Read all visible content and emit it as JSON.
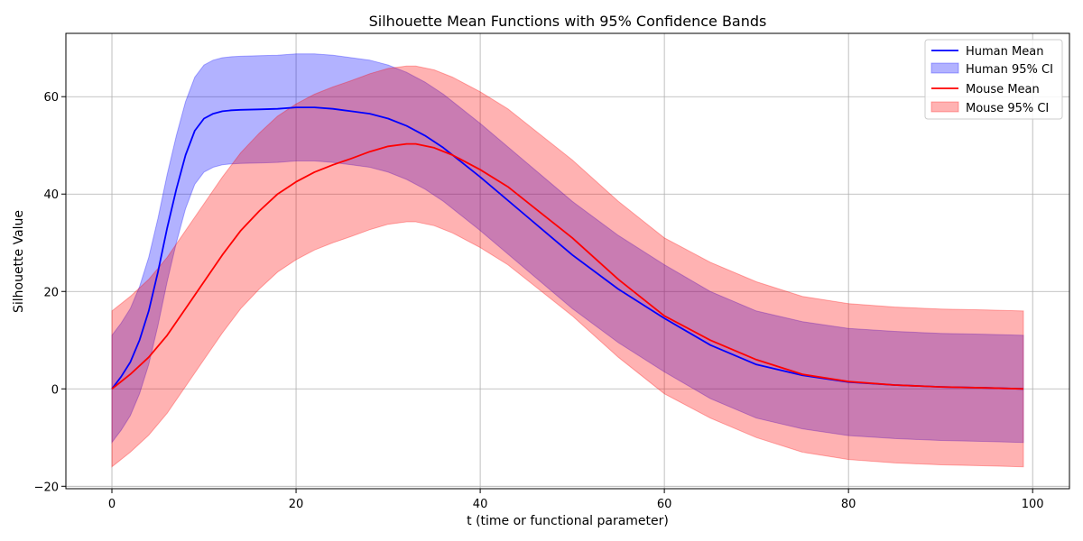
{
  "chart_data": {
    "type": "line",
    "title": "Silhouette Mean Functions with 95% Confidence Bands",
    "xlabel": "t (time or functional parameter)",
    "ylabel": "Silhouette Value",
    "xlim": [
      -5,
      104
    ],
    "ylim": [
      -20.5,
      73
    ],
    "xticks": [
      0,
      20,
      40,
      60,
      80,
      100
    ],
    "yticks": [
      -20,
      0,
      20,
      40,
      60
    ],
    "grid": true,
    "legend_position": "top-right",
    "legend": [
      "Human Mean",
      "Human 95% CI",
      "Mouse Mean",
      "Mouse 95% CI"
    ],
    "series": [
      {
        "name": "Human Mean",
        "color": "#0000ff",
        "ci_label": "Human 95% CI",
        "ci_color": "#0000ff",
        "x": [
          0,
          1,
          2,
          3,
          4,
          5,
          6,
          7,
          8,
          9,
          10,
          11,
          12,
          13,
          14,
          16,
          18,
          20,
          22,
          24,
          26,
          28,
          30,
          32,
          34,
          36,
          38,
          40,
          45,
          50,
          55,
          60,
          65,
          70,
          75,
          80,
          85,
          90,
          95,
          99
        ],
        "mean": [
          0,
          2.5,
          5.5,
          10,
          16,
          24,
          33,
          41,
          48,
          53,
          55.5,
          56.5,
          57,
          57.2,
          57.3,
          57.4,
          57.5,
          57.8,
          57.8,
          57.5,
          57,
          56.5,
          55.5,
          54,
          52,
          49.5,
          46.5,
          43.5,
          35.5,
          27.5,
          20.5,
          14.5,
          9,
          5,
          2.8,
          1.4,
          0.8,
          0.4,
          0.2,
          0
        ],
        "lower": [
          -11,
          -8.5,
          -5.5,
          -1,
          5,
          13,
          22,
          30,
          37,
          42,
          44.5,
          45.5,
          46,
          46.2,
          46.3,
          46.4,
          46.5,
          46.8,
          46.8,
          46.5,
          46,
          45.5,
          44.5,
          43,
          41,
          38.5,
          35.5,
          32.5,
          24.5,
          16.5,
          9.5,
          3.5,
          -2,
          -6,
          -8.2,
          -9.6,
          -10.2,
          -10.6,
          -10.8,
          -11
        ],
        "upper": [
          11,
          13.5,
          16.5,
          21,
          27,
          35,
          44,
          52,
          59,
          64,
          66.5,
          67.5,
          68,
          68.2,
          68.3,
          68.4,
          68.5,
          68.8,
          68.8,
          68.5,
          68,
          67.5,
          66.5,
          65,
          63,
          60.5,
          57.5,
          54.5,
          46.5,
          38.5,
          31.5,
          25.5,
          20,
          16,
          13.8,
          12.4,
          11.8,
          11.4,
          11.2,
          11
        ]
      },
      {
        "name": "Mouse Mean",
        "color": "#ff0000",
        "ci_label": "Mouse 95% CI",
        "ci_color": "#ff0000",
        "x": [
          0,
          2,
          4,
          6,
          8,
          10,
          12,
          14,
          16,
          18,
          20,
          22,
          24,
          26,
          28,
          30,
          32,
          33,
          35,
          37,
          40,
          43,
          46,
          50,
          55,
          60,
          65,
          70,
          75,
          80,
          85,
          90,
          95,
          99
        ],
        "mean": [
          0,
          3,
          6.5,
          11,
          16.5,
          22,
          27.5,
          32.5,
          36.5,
          40,
          42.5,
          44.5,
          46,
          47.3,
          48.7,
          49.8,
          50.3,
          50.3,
          49.5,
          48,
          45,
          41.5,
          37,
          31,
          22.5,
          15,
          10,
          6,
          3,
          1.5,
          0.8,
          0.4,
          0.2,
          0
        ],
        "lower": [
          -16,
          -13,
          -9.5,
          -5,
          0.5,
          6,
          11.5,
          16.5,
          20.5,
          24,
          26.5,
          28.5,
          30,
          31.3,
          32.7,
          33.8,
          34.3,
          34.3,
          33.5,
          32,
          29,
          25.5,
          21,
          15,
          6.5,
          -1,
          -6,
          -10,
          -13,
          -14.5,
          -15.2,
          -15.6,
          -15.8,
          -16
        ],
        "upper": [
          16,
          19,
          22.5,
          27,
          32.5,
          38,
          43.5,
          48.5,
          52.5,
          56,
          58.5,
          60.5,
          62,
          63.3,
          64.7,
          65.8,
          66.3,
          66.3,
          65.5,
          64,
          61,
          57.5,
          53,
          47,
          38.5,
          31,
          26,
          22,
          19,
          17.5,
          16.8,
          16.4,
          16.2,
          16
        ]
      }
    ]
  }
}
